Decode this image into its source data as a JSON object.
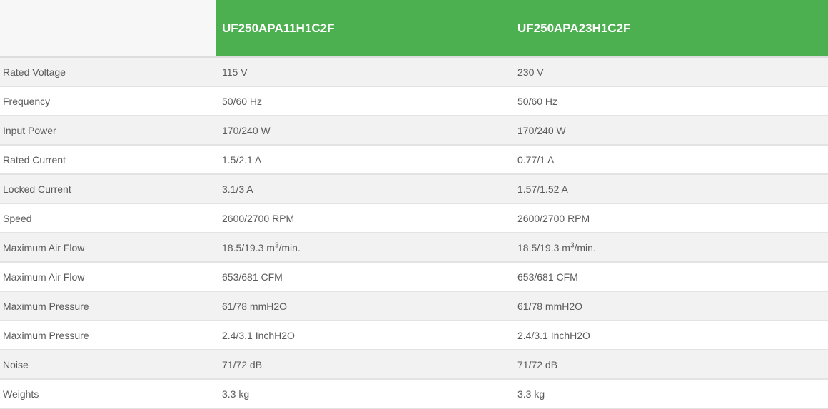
{
  "header": {
    "blank": "",
    "models": [
      "UF250APA11H1C2F",
      "UF250APA23H1C2F"
    ]
  },
  "colors": {
    "header_green": "#4caf50",
    "row_alt": "#f2f2f2",
    "text": "#5a5a5a"
  },
  "rows": [
    {
      "label": "Rated Voltage",
      "values": [
        {
          "text": "115 V"
        },
        {
          "text": "230 V"
        }
      ]
    },
    {
      "label": "Frequency",
      "values": [
        {
          "text": "50/60 Hz"
        },
        {
          "text": "50/60 Hz"
        }
      ]
    },
    {
      "label": "Input Power",
      "values": [
        {
          "text": "170/240 W"
        },
        {
          "text": "170/240 W"
        }
      ]
    },
    {
      "label": "Rated Current",
      "values": [
        {
          "text": "1.5/2.1 A"
        },
        {
          "text": "0.77/1 A"
        }
      ]
    },
    {
      "label": "Locked Current",
      "values": [
        {
          "text": "3.1/3 A"
        },
        {
          "text": "1.57/1.52 A"
        }
      ]
    },
    {
      "label": "Speed",
      "values": [
        {
          "text": "2600/2700 RPM"
        },
        {
          "text": "2600/2700 RPM"
        }
      ]
    },
    {
      "label": "Maximum Air Flow",
      "values": [
        {
          "text": "18.5/19.3 m",
          "sup": "3",
          "suffix": "/min."
        },
        {
          "text": "18.5/19.3 m",
          "sup": "3",
          "suffix": "/min."
        }
      ]
    },
    {
      "label": "Maximum Air Flow",
      "values": [
        {
          "text": "653/681 CFM"
        },
        {
          "text": "653/681 CFM"
        }
      ]
    },
    {
      "label": "Maximum Pressure",
      "values": [
        {
          "text": "61/78 mmH2O"
        },
        {
          "text": "61/78 mmH2O"
        }
      ]
    },
    {
      "label": "Maximum Pressure",
      "values": [
        {
          "text": "2.4/3.1 InchH2O"
        },
        {
          "text": "2.4/3.1 InchH2O"
        }
      ]
    },
    {
      "label": "Noise",
      "values": [
        {
          "text": "71/72 dB"
        },
        {
          "text": "71/72 dB"
        }
      ]
    },
    {
      "label": "Weights",
      "values": [
        {
          "text": "3.3 kg"
        },
        {
          "text": "3.3 kg"
        }
      ]
    }
  ]
}
